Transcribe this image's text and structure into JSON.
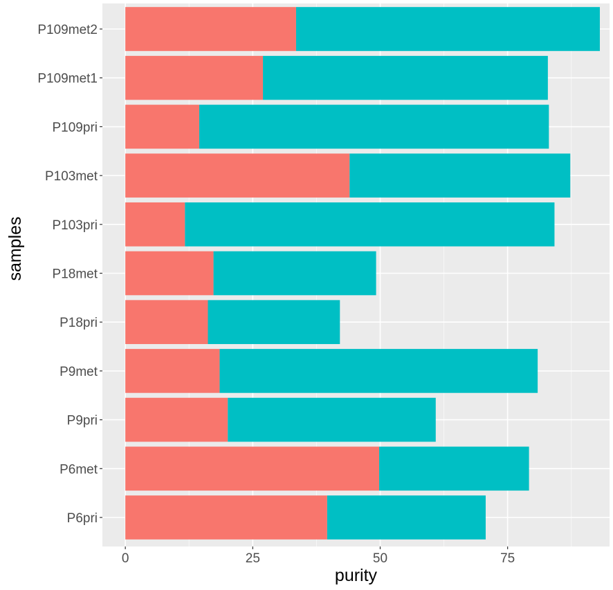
{
  "chart_data": {
    "type": "bar",
    "orientation": "horizontal",
    "stacked": true,
    "xlabel": "purity",
    "ylabel": "samples",
    "xlim": [
      -4.5,
      95
    ],
    "x_ticks": [
      0,
      25,
      50,
      75
    ],
    "grid": true,
    "legend": "none",
    "categories": [
      "P109met2",
      "P109met1",
      "P109pri",
      "P103met",
      "P103pri",
      "P18met",
      "P18pri",
      "P9met",
      "P9pri",
      "P6met",
      "P6pri"
    ],
    "series": [
      {
        "color": "#F8766D",
        "values": [
          33.5,
          27.0,
          14.5,
          44.0,
          11.7,
          17.3,
          16.2,
          18.5,
          20.1,
          49.8,
          39.6
        ]
      },
      {
        "color": "#00BFC4",
        "values": [
          59.6,
          55.9,
          68.6,
          43.3,
          72.5,
          31.9,
          25.9,
          62.4,
          40.8,
          29.4,
          31.1
        ]
      }
    ]
  }
}
